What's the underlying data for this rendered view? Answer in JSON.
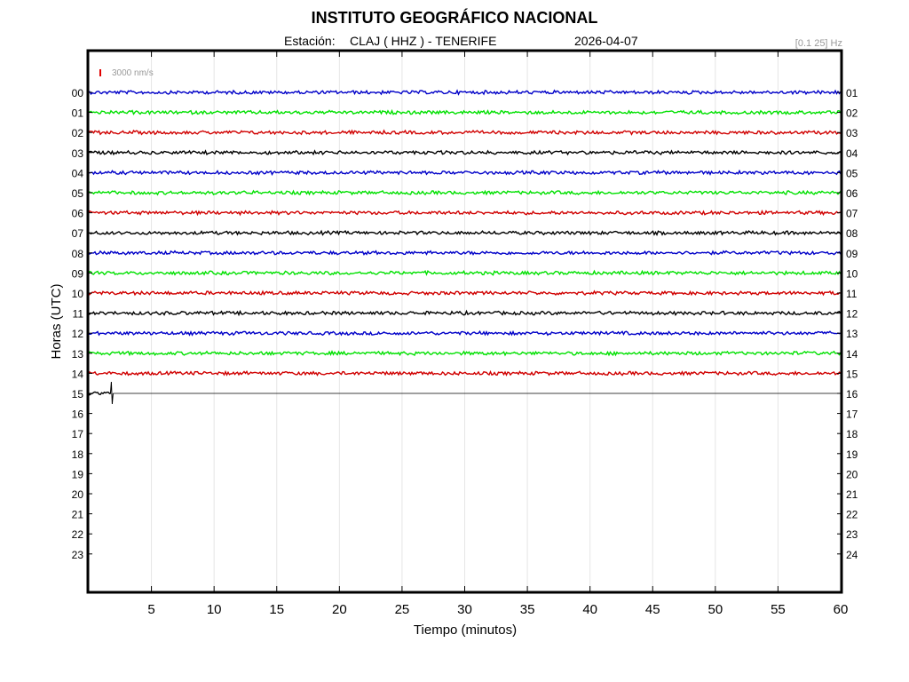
{
  "header": {
    "title": "INSTITUTO GEOGRÁFICO NACIONAL",
    "station_label": "Estación:",
    "station": "CLAJ ( HHZ ) - TENERIFE",
    "date": "2026-04-07",
    "band": "[0.1 25] Hz"
  },
  "chart_data": {
    "type": "line",
    "title": "INSTITUTO GEOGRÁFICO NACIONAL",
    "xlabel": "Tiempo (minutos)",
    "ylabel": "Horas (UTC)",
    "xlim": [
      0,
      60
    ],
    "x_ticks": [
      5,
      10,
      15,
      20,
      25,
      30,
      35,
      40,
      45,
      50,
      55,
      60
    ],
    "y_ticks_left": [
      "00",
      "01",
      "02",
      "03",
      "04",
      "05",
      "06",
      "07",
      "08",
      "09",
      "10",
      "11",
      "12",
      "13",
      "14",
      "15",
      "16",
      "17",
      "18",
      "19",
      "20",
      "21",
      "22",
      "23"
    ],
    "y_ticks_right": [
      "01",
      "02",
      "03",
      "04",
      "05",
      "06",
      "07",
      "08",
      "09",
      "10",
      "11",
      "12",
      "13",
      "14",
      "15",
      "16",
      "17",
      "18",
      "19",
      "20",
      "21",
      "22",
      "23",
      "24"
    ],
    "grid": "vertical",
    "scale_label": "3000 nm/s",
    "scale_color": "#e00000",
    "color_cycle": [
      "#0000c8",
      "#00e000",
      "#d00000",
      "#000000"
    ],
    "series": [
      {
        "hour": 0,
        "end_minute": 60,
        "color": "#0000c8"
      },
      {
        "hour": 1,
        "end_minute": 60,
        "color": "#00e000"
      },
      {
        "hour": 2,
        "end_minute": 60,
        "color": "#d00000"
      },
      {
        "hour": 3,
        "end_minute": 60,
        "color": "#000000"
      },
      {
        "hour": 4,
        "end_minute": 60,
        "color": "#0000c8"
      },
      {
        "hour": 5,
        "end_minute": 60,
        "color": "#00e000"
      },
      {
        "hour": 6,
        "end_minute": 60,
        "color": "#d00000"
      },
      {
        "hour": 7,
        "end_minute": 60,
        "color": "#000000"
      },
      {
        "hour": 8,
        "end_minute": 60,
        "color": "#0000c8"
      },
      {
        "hour": 9,
        "end_minute": 60,
        "color": "#00e000"
      },
      {
        "hour": 10,
        "end_minute": 60,
        "color": "#d00000"
      },
      {
        "hour": 11,
        "end_minute": 60,
        "color": "#000000"
      },
      {
        "hour": 12,
        "end_minute": 60,
        "color": "#0000c8"
      },
      {
        "hour": 13,
        "end_minute": 60,
        "color": "#00e000"
      },
      {
        "hour": 14,
        "end_minute": 60,
        "color": "#d00000"
      },
      {
        "hour": 15,
        "end_minute": 1.8,
        "color": "#000000",
        "spike_minute": 1.8
      }
    ]
  }
}
